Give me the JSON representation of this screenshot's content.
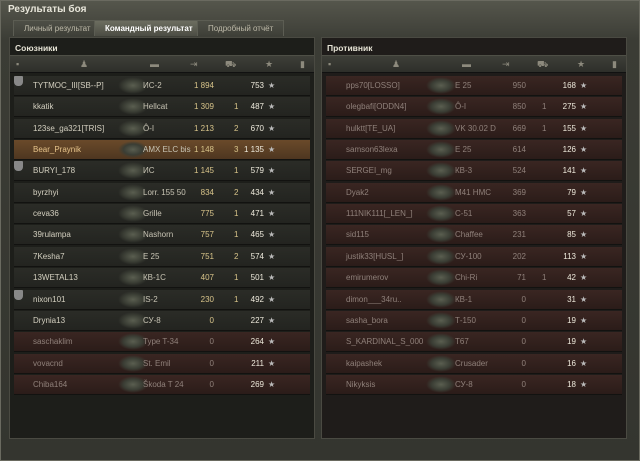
{
  "window": {
    "title": "Результаты боя"
  },
  "tabs": [
    {
      "label": "Личный результат"
    },
    {
      "label": "Командный результат",
      "active": true
    },
    {
      "label": "Подробный отчёт"
    }
  ],
  "header_icons": [
    "platoon-icon",
    "player-icon",
    "tank-icon",
    "damage-icon",
    "frags-icon",
    "xp-star-icon",
    "medal-icon"
  ],
  "allies": {
    "title": "Союзники",
    "rows": [
      {
        "name": "TYTMOC_III[SB--P]",
        "tank": "ИС-2",
        "damage": "1 894",
        "frags": "",
        "xp": "753",
        "clan": true
      },
      {
        "name": "kkatik",
        "tank": "Hellcat",
        "damage": "1 309",
        "frags": "1",
        "xp": "487"
      },
      {
        "name": "123se_ga321[TRIS]",
        "tank": "Ô-I",
        "damage": "1 213",
        "frags": "2",
        "xp": "670"
      },
      {
        "name": "Bear_Praynik",
        "tank": "AMX ELC bis",
        "damage": "1 148",
        "frags": "3",
        "xp": "1 135",
        "me": true
      },
      {
        "name": "BURYI_178",
        "tank": "ИС",
        "damage": "1 145",
        "frags": "1",
        "xp": "579",
        "clan": true
      },
      {
        "name": "byrzhyi",
        "tank": "Lorr. 155 50",
        "damage": "834",
        "frags": "2",
        "xp": "434"
      },
      {
        "name": "ceva36",
        "tank": "Grille",
        "damage": "775",
        "frags": "1",
        "xp": "471"
      },
      {
        "name": "39rulampa",
        "tank": "Nashorn",
        "damage": "757",
        "frags": "1",
        "xp": "465"
      },
      {
        "name": "7Kesha7",
        "tank": "E 25",
        "damage": "751",
        "frags": "2",
        "xp": "574"
      },
      {
        "name": "13WETAL13",
        "tank": "КВ-1С",
        "damage": "407",
        "frags": "1",
        "xp": "501"
      },
      {
        "name": "nixon101",
        "tank": "IS-2",
        "damage": "230",
        "frags": "1",
        "xp": "492",
        "clan": true
      },
      {
        "name": "Drynia13",
        "tank": "СУ-8",
        "damage": "0",
        "frags": "",
        "xp": "227"
      },
      {
        "name": "saschaklim",
        "tank": "Type T-34",
        "damage": "0",
        "frags": "",
        "xp": "264",
        "dead": true
      },
      {
        "name": "vovacnd",
        "tank": "St. Emil",
        "damage": "0",
        "frags": "",
        "xp": "211",
        "dead": true
      },
      {
        "name": "Chiba164",
        "tank": "Škoda T 24",
        "damage": "0",
        "frags": "",
        "xp": "269",
        "dead": true
      }
    ]
  },
  "enemies": {
    "title": "Противник",
    "rows": [
      {
        "name": "pps70[LOSSO]",
        "tank": "E 25",
        "damage": "950",
        "frags": "",
        "xp": "168"
      },
      {
        "name": "olegbafi[ODDN4]",
        "tank": "Ô-I",
        "damage": "850",
        "frags": "1",
        "xp": "275"
      },
      {
        "name": "hulktt[TE_UA]",
        "tank": "VK 30.02 D",
        "damage": "669",
        "frags": "1",
        "xp": "155"
      },
      {
        "name": "samson63lexa",
        "tank": "E 25",
        "damage": "614",
        "frags": "",
        "xp": "126"
      },
      {
        "name": "SERGEI_mg",
        "tank": "КВ-3",
        "damage": "524",
        "frags": "",
        "xp": "141"
      },
      {
        "name": "Dyak2",
        "tank": "M41 HMC",
        "damage": "369",
        "frags": "",
        "xp": "79"
      },
      {
        "name": "111NIK111[_LEN_]",
        "tank": "С-51",
        "damage": "363",
        "frags": "",
        "xp": "57"
      },
      {
        "name": "sid115",
        "tank": "Chaffee",
        "damage": "231",
        "frags": "",
        "xp": "85"
      },
      {
        "name": "justik33[HUSL_]",
        "tank": "СУ-100",
        "damage": "202",
        "frags": "",
        "xp": "113"
      },
      {
        "name": "emirumerov",
        "tank": "Chi-Ri",
        "damage": "71",
        "frags": "1",
        "xp": "42"
      },
      {
        "name": "dimon___34ru..",
        "tank": "КВ-1",
        "damage": "0",
        "frags": "",
        "xp": "31"
      },
      {
        "name": "sasha_bora",
        "tank": "Т-150",
        "damage": "0",
        "frags": "",
        "xp": "19"
      },
      {
        "name": "S_KARDINAL_S_000",
        "tank": "T67",
        "damage": "0",
        "frags": "",
        "xp": "19"
      },
      {
        "name": "kaipashek",
        "tank": "Crusader",
        "damage": "0",
        "frags": "",
        "xp": "16"
      },
      {
        "name": "Nikyksis",
        "tank": "СУ-8",
        "damage": "0",
        "frags": "",
        "xp": "18"
      }
    ]
  },
  "colors": {
    "highlight_row": "#6a4a2a",
    "dead_row": "#3a2622",
    "damage_text": "#d8c48a"
  }
}
